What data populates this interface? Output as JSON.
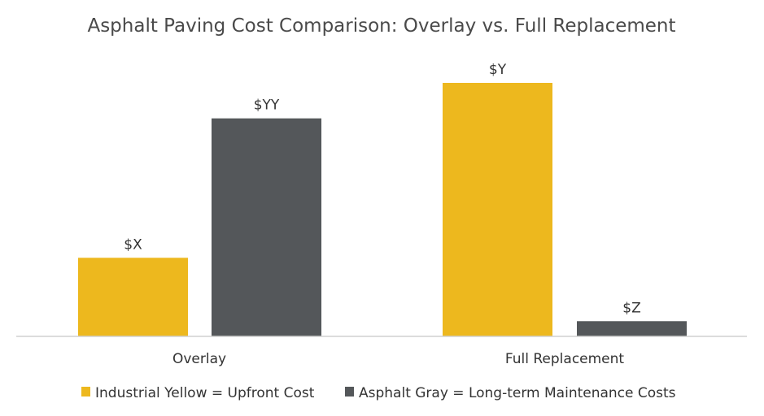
{
  "chart_data": {
    "type": "bar",
    "title": "Asphalt Paving Cost Comparison: Overlay vs. Full Replacement",
    "categories": [
      "Overlay",
      "Full Replacement"
    ],
    "xlabel": "",
    "ylabel": "",
    "y_axis_shown": false,
    "grid": false,
    "ylim": [
      0,
      100
    ],
    "value_note": "relative bar heights (no numeric axis shown)",
    "series": [
      {
        "name": "Industrial Yellow = Upfront Cost",
        "color": "#EDB81E",
        "values": [
          31,
          100
        ],
        "data_labels": [
          "$X",
          "$Y"
        ]
      },
      {
        "name": "Asphalt Gray = Long-term Maintenance Costs",
        "color": "#54575A",
        "values": [
          86,
          6
        ],
        "data_labels": [
          "$YY",
          "$Z"
        ]
      }
    ],
    "legend": {
      "placement": "bottom"
    }
  }
}
